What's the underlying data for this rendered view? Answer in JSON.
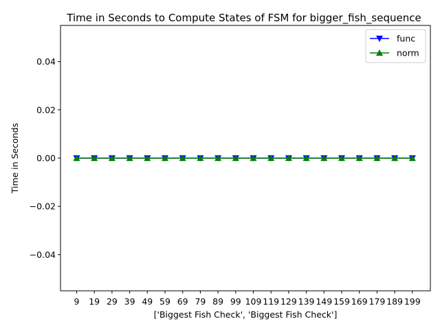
{
  "chart_data": {
    "type": "line",
    "title": "Time in Seconds to Compute States of FSM for bigger_fish_sequence",
    "xlabel": "['Biggest Fish Check', 'Biggest Fish Check']",
    "ylabel": "Time in Seconds",
    "categories": [
      "9",
      "19",
      "29",
      "39",
      "49",
      "59",
      "69",
      "79",
      "89",
      "99",
      "109",
      "119",
      "129",
      "139",
      "149",
      "159",
      "169",
      "179",
      "189",
      "199"
    ],
    "ylim": [
      -0.055,
      0.055
    ],
    "yticks": [
      -0.04,
      -0.02,
      0.0,
      0.02,
      0.04
    ],
    "ytick_labels": [
      "−0.04",
      "−0.02",
      "0.00",
      "0.02",
      "0.04"
    ],
    "legend_position": "top-right",
    "grid": false,
    "series": [
      {
        "name": "func",
        "color": "#0000ff",
        "marker": "triangle-down",
        "values": [
          0,
          0,
          0,
          0,
          0,
          0,
          0,
          0,
          0,
          0,
          0,
          0,
          0,
          0,
          0,
          0,
          0,
          0,
          0,
          0
        ]
      },
      {
        "name": "norm",
        "color": "#008000",
        "marker": "triangle-up",
        "values": [
          0,
          0,
          0,
          0,
          0,
          0,
          0,
          0,
          0,
          0,
          0,
          0,
          0,
          0,
          0,
          0,
          0,
          0,
          0,
          0
        ]
      }
    ]
  }
}
